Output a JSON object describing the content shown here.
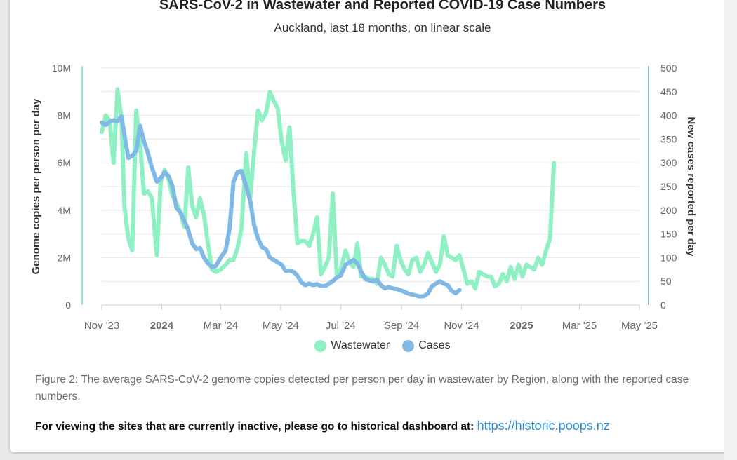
{
  "chart_data": {
    "type": "line",
    "title": "SARS-CoV-2 in Wastewater and Reported COVID-19 Case Numbers",
    "subtitle": "Auckland, last 18 months, on linear scale",
    "ylabel_left": "Genome copies per person per day",
    "ylabel_right": "New cases reported per day",
    "y_left_range": [
      0,
      10000000
    ],
    "y_right_range": [
      0,
      500
    ],
    "y_left_ticks": [
      "0",
      "2M",
      "4M",
      "6M",
      "8M",
      "10M"
    ],
    "y_right_ticks": [
      "0",
      "50",
      "100",
      "150",
      "200",
      "250",
      "300",
      "350",
      "400",
      "450",
      "500"
    ],
    "x_range": [
      "2023-11-01",
      "2025-05-01"
    ],
    "x_ticks": [
      {
        "label": "Nov '23",
        "date": "2023-11-01",
        "bold": false
      },
      {
        "label": "2024",
        "date": "2024-01-01",
        "bold": true
      },
      {
        "label": "Mar '24",
        "date": "2024-03-01",
        "bold": false
      },
      {
        "label": "May '24",
        "date": "2024-05-01",
        "bold": false
      },
      {
        "label": "Jul '24",
        "date": "2024-07-01",
        "bold": false
      },
      {
        "label": "Sep '24",
        "date": "2024-09-01",
        "bold": false
      },
      {
        "label": "Nov '24",
        "date": "2024-11-01",
        "bold": false
      },
      {
        "label": "2025",
        "date": "2025-01-01",
        "bold": true
      },
      {
        "label": "Mar '25",
        "date": "2025-03-01",
        "bold": false
      },
      {
        "label": "May '25",
        "date": "2025-05-01",
        "bold": false
      }
    ],
    "grid": "horizontal",
    "legend_position": "bottom",
    "series": [
      {
        "name": "Wastewater",
        "axis": "left",
        "color": "#8ff0c4",
        "points": [
          [
            "2023-11-01",
            7300000
          ],
          [
            "2023-11-05",
            8000000
          ],
          [
            "2023-11-09",
            7800000
          ],
          [
            "2023-11-13",
            6000000
          ],
          [
            "2023-11-17",
            9100000
          ],
          [
            "2023-11-21",
            7900000
          ],
          [
            "2023-11-24",
            4200000
          ],
          [
            "2023-11-28",
            2800000
          ],
          [
            "2023-12-02",
            2300000
          ],
          [
            "2023-12-06",
            8200000
          ],
          [
            "2023-12-10",
            6800000
          ],
          [
            "2023-12-14",
            4700000
          ],
          [
            "2023-12-18",
            4800000
          ],
          [
            "2023-12-22",
            4500000
          ],
          [
            "2023-12-27",
            2100000
          ],
          [
            "2023-12-31",
            5200000
          ],
          [
            "2024-01-04",
            5700000
          ],
          [
            "2024-01-08",
            5300000
          ],
          [
            "2024-01-12",
            4600000
          ],
          [
            "2024-01-16",
            4300000
          ],
          [
            "2024-01-20",
            3900000
          ],
          [
            "2024-01-24",
            3300000
          ],
          [
            "2024-01-28",
            5800000
          ],
          [
            "2024-02-01",
            4200000
          ],
          [
            "2024-02-05",
            3700000
          ],
          [
            "2024-02-09",
            4500000
          ],
          [
            "2024-02-13",
            3800000
          ],
          [
            "2024-02-17",
            2600000
          ],
          [
            "2024-02-21",
            1500000
          ],
          [
            "2024-02-25",
            1400000
          ],
          [
            "2024-03-01",
            1500000
          ],
          [
            "2024-03-06",
            1700000
          ],
          [
            "2024-03-10",
            1900000
          ],
          [
            "2024-03-14",
            1900000
          ],
          [
            "2024-03-18",
            2400000
          ],
          [
            "2024-03-22",
            3200000
          ],
          [
            "2024-03-27",
            6400000
          ],
          [
            "2024-03-31",
            4500000
          ],
          [
            "2024-04-04",
            6500000
          ],
          [
            "2024-04-08",
            8200000
          ],
          [
            "2024-04-12",
            7800000
          ],
          [
            "2024-04-16",
            8100000
          ],
          [
            "2024-04-20",
            9000000
          ],
          [
            "2024-04-24",
            8600000
          ],
          [
            "2024-04-28",
            8300000
          ],
          [
            "2024-05-02",
            6900000
          ],
          [
            "2024-05-06",
            6100000
          ],
          [
            "2024-05-10",
            7500000
          ],
          [
            "2024-05-14",
            4800000
          ],
          [
            "2024-05-18",
            2600000
          ],
          [
            "2024-05-22",
            2700000
          ],
          [
            "2024-05-26",
            2700000
          ],
          [
            "2024-05-30",
            2500000
          ],
          [
            "2024-06-03",
            3000000
          ],
          [
            "2024-06-07",
            3700000
          ],
          [
            "2024-06-11",
            1300000
          ],
          [
            "2024-06-15",
            1600000
          ],
          [
            "2024-06-19",
            2000000
          ],
          [
            "2024-06-23",
            4700000
          ],
          [
            "2024-06-27",
            1300000
          ],
          [
            "2024-07-01",
            1500000
          ],
          [
            "2024-07-06",
            2300000
          ],
          [
            "2024-07-10",
            1800000
          ],
          [
            "2024-07-14",
            1600000
          ],
          [
            "2024-07-18",
            2600000
          ],
          [
            "2024-07-22",
            1200000
          ],
          [
            "2024-07-26",
            1200000
          ],
          [
            "2024-07-30",
            1100000
          ],
          [
            "2024-08-03",
            1100000
          ],
          [
            "2024-08-07",
            900000
          ],
          [
            "2024-08-11",
            2000000
          ],
          [
            "2024-08-15",
            1700000
          ],
          [
            "2024-08-19",
            1300000
          ],
          [
            "2024-08-23",
            1200000
          ],
          [
            "2024-08-27",
            2500000
          ],
          [
            "2024-08-31",
            1900000
          ],
          [
            "2024-09-04",
            1500000
          ],
          [
            "2024-09-08",
            1300000
          ],
          [
            "2024-09-12",
            1900000
          ],
          [
            "2024-09-16",
            2000000
          ],
          [
            "2024-09-20",
            1400000
          ],
          [
            "2024-09-24",
            1700000
          ],
          [
            "2024-09-28",
            2200000
          ],
          [
            "2024-10-02",
            1800000
          ],
          [
            "2024-10-06",
            1400000
          ],
          [
            "2024-10-10",
            1700000
          ],
          [
            "2024-10-14",
            2900000
          ],
          [
            "2024-10-18",
            2100000
          ],
          [
            "2024-10-22",
            2000000
          ],
          [
            "2024-10-26",
            1900000
          ],
          [
            "2024-10-30",
            2100000
          ],
          [
            "2024-11-03",
            1500000
          ],
          [
            "2024-11-07",
            900000
          ],
          [
            "2024-11-11",
            1000000
          ],
          [
            "2024-11-15",
            700000
          ],
          [
            "2024-11-19",
            1400000
          ],
          [
            "2024-11-23",
            1300000
          ],
          [
            "2024-11-27",
            1200000
          ],
          [
            "2024-12-01",
            1200000
          ],
          [
            "2024-12-05",
            800000
          ],
          [
            "2024-12-09",
            900000
          ],
          [
            "2024-12-13",
            1300000
          ],
          [
            "2024-12-17",
            1000000
          ],
          [
            "2024-12-21",
            1600000
          ],
          [
            "2024-12-25",
            1100000
          ],
          [
            "2024-12-29",
            1700000
          ],
          [
            "2025-01-02",
            1200000
          ],
          [
            "2025-01-06",
            1700000
          ],
          [
            "2025-01-10",
            1600000
          ],
          [
            "2025-01-14",
            1500000
          ],
          [
            "2025-01-18",
            2000000
          ],
          [
            "2025-01-22",
            1700000
          ],
          [
            "2025-01-26",
            2300000
          ],
          [
            "2025-01-30",
            2800000
          ],
          [
            "2025-02-03",
            6000000
          ]
        ]
      },
      {
        "name": "Cases",
        "axis": "right",
        "color": "#80b9e6",
        "points": [
          [
            "2023-11-01",
            385
          ],
          [
            "2023-11-05",
            380
          ],
          [
            "2023-11-09",
            387
          ],
          [
            "2023-11-13",
            390
          ],
          [
            "2023-11-17",
            388
          ],
          [
            "2023-11-21",
            398
          ],
          [
            "2023-11-24",
            360
          ],
          [
            "2023-11-28",
            310
          ],
          [
            "2023-12-02",
            315
          ],
          [
            "2023-12-06",
            325
          ],
          [
            "2023-12-10",
            378
          ],
          [
            "2023-12-14",
            345
          ],
          [
            "2023-12-18",
            320
          ],
          [
            "2023-12-22",
            290
          ],
          [
            "2023-12-27",
            260
          ],
          [
            "2023-12-31",
            268
          ],
          [
            "2024-01-04",
            280
          ],
          [
            "2024-01-08",
            272
          ],
          [
            "2024-01-12",
            250
          ],
          [
            "2024-01-16",
            205
          ],
          [
            "2024-01-20",
            195
          ],
          [
            "2024-01-24",
            178
          ],
          [
            "2024-01-28",
            158
          ],
          [
            "2024-02-01",
            130
          ],
          [
            "2024-02-05",
            118
          ],
          [
            "2024-02-09",
            120
          ],
          [
            "2024-02-13",
            100
          ],
          [
            "2024-02-17",
            88
          ],
          [
            "2024-02-21",
            80
          ],
          [
            "2024-02-25",
            82
          ],
          [
            "2024-03-01",
            100
          ],
          [
            "2024-03-06",
            115
          ],
          [
            "2024-03-10",
            160
          ],
          [
            "2024-03-14",
            260
          ],
          [
            "2024-03-18",
            280
          ],
          [
            "2024-03-22",
            283
          ],
          [
            "2024-03-27",
            250
          ],
          [
            "2024-03-31",
            220
          ],
          [
            "2024-04-04",
            168
          ],
          [
            "2024-04-08",
            140
          ],
          [
            "2024-04-12",
            122
          ],
          [
            "2024-04-16",
            118
          ],
          [
            "2024-04-20",
            100
          ],
          [
            "2024-04-24",
            95
          ],
          [
            "2024-04-28",
            90
          ],
          [
            "2024-05-02",
            85
          ],
          [
            "2024-05-06",
            72
          ],
          [
            "2024-05-10",
            73
          ],
          [
            "2024-05-14",
            70
          ],
          [
            "2024-05-18",
            62
          ],
          [
            "2024-05-22",
            48
          ],
          [
            "2024-05-26",
            42
          ],
          [
            "2024-05-30",
            45
          ],
          [
            "2024-06-03",
            42
          ],
          [
            "2024-06-07",
            44
          ],
          [
            "2024-06-11",
            40
          ],
          [
            "2024-06-15",
            40
          ],
          [
            "2024-06-19",
            45
          ],
          [
            "2024-06-23",
            50
          ],
          [
            "2024-06-27",
            58
          ],
          [
            "2024-07-01",
            62
          ],
          [
            "2024-07-06",
            85
          ],
          [
            "2024-07-10",
            90
          ],
          [
            "2024-07-14",
            95
          ],
          [
            "2024-07-18",
            88
          ],
          [
            "2024-07-22",
            70
          ],
          [
            "2024-07-26",
            55
          ],
          [
            "2024-07-30",
            52
          ],
          [
            "2024-08-03",
            50
          ],
          [
            "2024-08-07",
            53
          ],
          [
            "2024-08-11",
            42
          ],
          [
            "2024-08-15",
            35
          ],
          [
            "2024-08-19",
            38
          ],
          [
            "2024-08-23",
            35
          ],
          [
            "2024-08-27",
            34
          ],
          [
            "2024-08-31",
            31
          ],
          [
            "2024-09-04",
            28
          ],
          [
            "2024-09-08",
            24
          ],
          [
            "2024-09-12",
            22
          ],
          [
            "2024-09-16",
            20
          ],
          [
            "2024-09-20",
            18
          ],
          [
            "2024-09-24",
            19
          ],
          [
            "2024-09-28",
            25
          ],
          [
            "2024-10-02",
            40
          ],
          [
            "2024-10-06",
            45
          ],
          [
            "2024-10-10",
            50
          ],
          [
            "2024-10-14",
            45
          ],
          [
            "2024-10-18",
            42
          ],
          [
            "2024-10-22",
            30
          ],
          [
            "2024-10-26",
            25
          ],
          [
            "2024-10-30",
            32
          ]
        ]
      }
    ]
  },
  "legend": [
    {
      "label": "Wastewater",
      "color": "#8ff0c4"
    },
    {
      "label": "Cases",
      "color": "#80b9e6"
    }
  ],
  "caption": "Figure 2: The average SARS-CoV-2 genome copies detected per person per day in wastewater by Region, along with the reported case numbers.",
  "inactive_text": "For viewing the sites that are currently inactive, please go to historical dashboard at:",
  "inactive_link": "https://historic.poops.nz"
}
